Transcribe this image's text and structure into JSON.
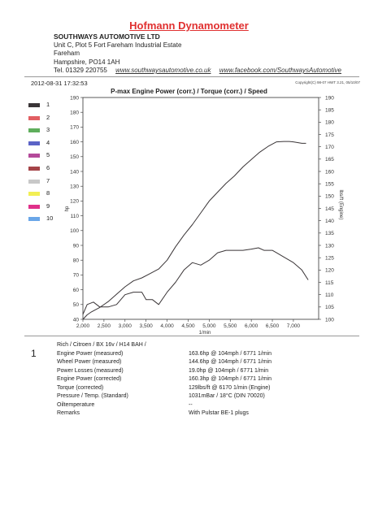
{
  "header": {
    "brand": "Hofmann Dynamometer",
    "company": "SOUTHWAYS AUTOMOTIVE LTD",
    "address": [
      "Unit C, Plot 5 Fort Fareham Industrial Estate",
      "Fareham",
      "Hampshire, PO14 1AH"
    ],
    "tel": "Tel. 01329 220755",
    "website": "www.southwaysautomotive.co.uk",
    "facebook": "www.facebook.com/SouthwaysAutomotive"
  },
  "run": {
    "datetime": "2012-08-31 17:32:53",
    "copyright": "Copyright(C) 98-07 HWT 3.21, 05/10/07",
    "run_number": "1"
  },
  "legend": {
    "items": [
      {
        "label": "1",
        "color": "#3a3537"
      },
      {
        "label": "2",
        "color": "#e25e62"
      },
      {
        "label": "3",
        "color": "#5fae5c"
      },
      {
        "label": "4",
        "color": "#5b63c6"
      },
      {
        "label": "5",
        "color": "#b44a9a"
      },
      {
        "label": "6",
        "color": "#a54448"
      },
      {
        "label": "7",
        "color": "#c8c8c8"
      },
      {
        "label": "8",
        "color": "#f2ef54"
      },
      {
        "label": "9",
        "color": "#e0308a"
      },
      {
        "label": "10",
        "color": "#6aa6e8"
      }
    ]
  },
  "chart_data": {
    "type": "line",
    "title": "P-max Engine Power (corr.) / Torque (corr.) / Speed",
    "xlabel": "1/min",
    "ylabel_left": "hp",
    "ylabel_right": "lbs/ft (Engine)",
    "xlim": [
      2000,
      7600
    ],
    "ylim_left": [
      40,
      190
    ],
    "ylim_right": [
      100,
      190
    ],
    "x_ticks": [
      2000,
      2500,
      3000,
      3500,
      4000,
      4500,
      5000,
      5500,
      6000,
      6500,
      7000
    ],
    "x_tick_labels": [
      "2,000",
      "2,500",
      "3,000",
      "3,500",
      "4,000",
      "4,500",
      "5,000",
      "5,500",
      "6,000",
      "6,500",
      "7,000"
    ],
    "y_ticks_left": [
      40,
      50,
      60,
      70,
      80,
      90,
      100,
      110,
      120,
      130,
      140,
      150,
      160,
      170,
      180,
      190
    ],
    "y_ticks_right": [
      100,
      105,
      110,
      115,
      120,
      125,
      130,
      135,
      140,
      145,
      150,
      155,
      160,
      165,
      170,
      175,
      180,
      185,
      190
    ],
    "grid": false,
    "series": [
      {
        "axis": "left",
        "color": "#3a3537",
        "x": [
          2000,
          2100,
          2200,
          2400,
          2600,
          2800,
          3000,
          3200,
          3400,
          3600,
          3800,
          4000,
          4200,
          4400,
          4600,
          4800,
          5000,
          5200,
          5400,
          5600,
          5800,
          6000,
          6200,
          6400,
          6600,
          6771,
          6900,
          7000,
          7200,
          7300
        ],
        "y": [
          40,
          43,
          45,
          48,
          52,
          57,
          62,
          66,
          68,
          71,
          74,
          80,
          89,
          97,
          104,
          112,
          120,
          126,
          132,
          137,
          143,
          148,
          153,
          157,
          160,
          160.3,
          160.3,
          160,
          159,
          159
        ]
      },
      {
        "axis": "right",
        "color": "#3a3537",
        "x": [
          2000,
          2100,
          2250,
          2400,
          2600,
          2800,
          3000,
          3200,
          3400,
          3500,
          3650,
          3800,
          4000,
          4200,
          4400,
          4600,
          4800,
          5000,
          5200,
          5400,
          5600,
          5800,
          6000,
          6170,
          6300,
          6500,
          6600,
          6800,
          7000,
          7200,
          7350
        ],
        "y": [
          102,
          106,
          107,
          105,
          105,
          106,
          110,
          111,
          111,
          108,
          108,
          106,
          111,
          115,
          120,
          123,
          122,
          124,
          127,
          128,
          128,
          128,
          128.5,
          129,
          128,
          128,
          127,
          125,
          123,
          120,
          116
        ]
      }
    ]
  },
  "results": {
    "vehicle": "Rich / Citroen / BX 16v / H14 BAH /",
    "rows": [
      {
        "label": "Engine Power (measured)",
        "value": "163.6hp @ 104mph / 6771 1/min"
      },
      {
        "label": "Wheel Power (measured)",
        "value": "144.6hp @ 104mph / 6771 1/min"
      },
      {
        "label": "Power Losses (measured)",
        "value": "19.0hp @ 104mph / 6771 1/min"
      },
      {
        "label": "Engine Power (corrected)",
        "value": "160.3hp @ 104mph / 6771 1/min"
      },
      {
        "label": "Torque (corrected)",
        "value": "129lbs/ft @ 6170 1/min (Engine)"
      },
      {
        "label": "Pressure / Temp. (Standard)",
        "value": "1031mBar / 18°C  (DIN 70020)"
      },
      {
        "label": "Oiltemperature",
        "value": "--"
      },
      {
        "label": "Remarks",
        "value": "With Pulstar BE-1 plugs"
      }
    ]
  }
}
